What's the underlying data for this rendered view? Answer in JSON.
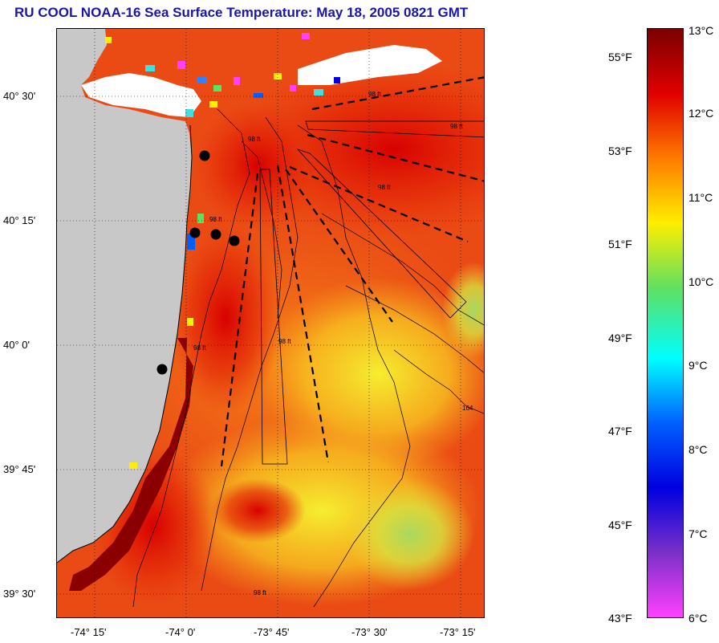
{
  "title": "RU COOL  NOAA-16  Sea Surface Temperature:  May 18, 2005 0821 GMT",
  "map": {
    "lat_ticks": [
      "40° 30'",
      "40° 15'",
      "40° 0'",
      "39° 45'",
      "39° 30'"
    ],
    "lon_ticks": [
      "-74° 15'",
      "-74° 0'",
      "-73° 45'",
      "-73° 30'",
      "-73° 15'"
    ],
    "contour_labels": [
      "98 ft",
      "98 ft",
      "98 ft",
      "98 ft",
      "98 ft",
      "98 ft",
      "98 ft",
      "98 ft",
      "164"
    ],
    "colors": {
      "land": "#c8c8c8",
      "cloud": "#ffffff",
      "warm": "#e83a10"
    }
  },
  "colorbar": {
    "celsius": [
      "13°C",
      "12°C",
      "11°C",
      "10°C",
      "9°C",
      "8°C",
      "7°C",
      "6°C"
    ],
    "fahrenheit": [
      "55°F",
      "53°F",
      "51°F",
      "49°F",
      "47°F",
      "45°F",
      "43°F"
    ],
    "colors": [
      "#7a0000",
      "#e00000",
      "#ff7a00",
      "#ffee00",
      "#60e060",
      "#00ffff",
      "#0060ff",
      "#0000e0",
      "#7a30c8",
      "#ff40ff"
    ]
  }
}
